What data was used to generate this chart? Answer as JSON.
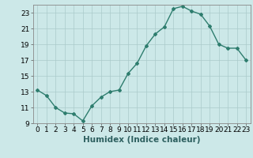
{
  "x": [
    0,
    1,
    2,
    3,
    4,
    5,
    6,
    7,
    8,
    9,
    10,
    11,
    12,
    13,
    14,
    15,
    16,
    17,
    18,
    19,
    20,
    21,
    22,
    23
  ],
  "y": [
    13.2,
    12.5,
    11.0,
    10.3,
    10.2,
    9.3,
    11.2,
    12.3,
    13.0,
    13.2,
    15.3,
    16.6,
    18.8,
    20.3,
    21.2,
    23.5,
    23.8,
    23.2,
    22.8,
    21.3,
    19.0,
    18.5,
    18.5,
    17.0
  ],
  "title": "",
  "xlabel": "Humidex (Indice chaleur)",
  "ylabel": "",
  "ylim": [
    9,
    24
  ],
  "xlim": [
    -0.5,
    23.5
  ],
  "yticks": [
    9,
    11,
    13,
    15,
    17,
    19,
    21,
    23
  ],
  "xticks": [
    0,
    1,
    2,
    3,
    4,
    5,
    6,
    7,
    8,
    9,
    10,
    11,
    12,
    13,
    14,
    15,
    16,
    17,
    18,
    19,
    20,
    21,
    22,
    23
  ],
  "line_color": "#2e7d6e",
  "marker": "D",
  "marker_size": 2.0,
  "bg_color": "#cce8e8",
  "grid_color": "#aacaca",
  "line_width": 1.0,
  "xlabel_fontsize": 7.5,
  "tick_fontsize": 6.5
}
